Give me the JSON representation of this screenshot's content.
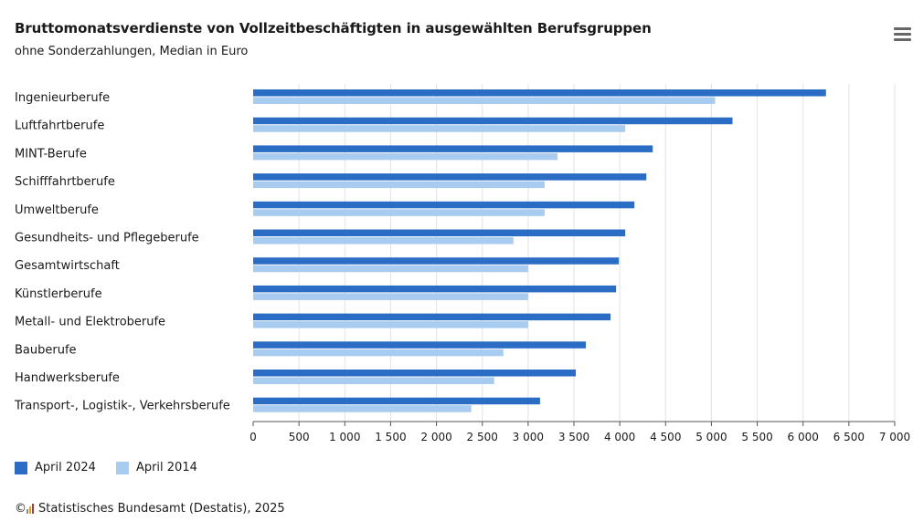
{
  "header": {
    "title": "Bruttomonatsverdienste von Vollzeitbeschäftigten in ausgewählten Berufsgruppen",
    "subtitle": "ohne Sonderzahlungen, Median in Euro",
    "menu_icon": "hamburger-menu-icon"
  },
  "legend": [
    {
      "label": "April 2024",
      "color": "#2b6cc4"
    },
    {
      "label": "April 2014",
      "color": "#a8cbf0"
    }
  ],
  "credit": {
    "copyright_symbol": "©",
    "logo_icon": "destatis-logo-icon",
    "text": "Statistisches Bundesamt (Destatis), 2025"
  },
  "chart_data": {
    "type": "bar",
    "orientation": "horizontal",
    "title": "Bruttomonatsverdienste von Vollzeitbeschäftigten in ausgewählten Berufsgruppen",
    "subtitle": "ohne Sonderzahlungen, Median in Euro",
    "categories": [
      "Ingenieurberufe",
      "Luftfahrtberufe",
      "MINT-Berufe",
      "Schifffahrtberufe",
      "Umweltberufe",
      "Gesundheits- und Pflegeberufe",
      "Gesamtwirtschaft",
      "Künstlerberufe",
      "Metall- und Elektroberufe",
      "Bauberufe",
      "Handwerksberufe",
      "Transport-, Logistik-, Verkehrsberufe"
    ],
    "series": [
      {
        "name": "April 2024",
        "color": "#2b6cc4",
        "values": [
          6250,
          5230,
          4360,
          4290,
          4160,
          4060,
          3990,
          3960,
          3900,
          3630,
          3520,
          3130
        ]
      },
      {
        "name": "April 2014",
        "color": "#a8cbf0",
        "values": [
          5040,
          4060,
          3320,
          3180,
          3180,
          2840,
          3000,
          3000,
          3000,
          2730,
          2630,
          2380
        ]
      }
    ],
    "xlim": [
      0,
      7000
    ],
    "xticks": [
      0,
      500,
      1000,
      1500,
      2000,
      2500,
      3000,
      3500,
      4000,
      4500,
      5000,
      5500,
      6000,
      6500,
      7000
    ],
    "xtick_labels": [
      "0",
      "500",
      "1 000",
      "1 500",
      "2 000",
      "2 500",
      "3 000",
      "3 500",
      "4 000",
      "4 500",
      "5 000",
      "5 500",
      "6 000",
      "6 500",
      "7 000"
    ],
    "grid": "vertical",
    "legend_position": "bottom-left"
  }
}
